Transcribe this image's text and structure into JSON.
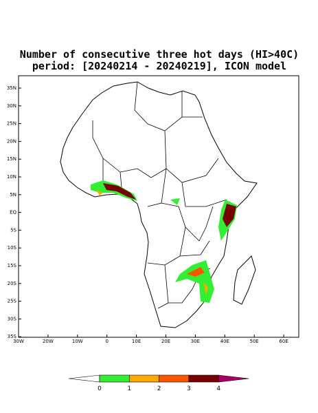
{
  "title": [
    "Number of consecutive three hot days (HI>40C)",
    "period: [20240214 - 20240219], ICON model"
  ],
  "map": {
    "lat_labels": [
      "35N",
      "30N",
      "25N",
      "20N",
      "15N",
      "10N",
      "5N",
      "EQ",
      "5S",
      "10S",
      "15S",
      "20S",
      "25S",
      "30S",
      "35S"
    ],
    "lon_labels": [
      "30W",
      "20W",
      "10W",
      "0",
      "10E",
      "20E",
      "30E",
      "40E",
      "50E",
      "60E"
    ]
  },
  "colorbar": {
    "labels": [
      "0",
      "1",
      "2",
      "3",
      "4"
    ],
    "colors": [
      "#ffffff",
      "#33ee33",
      "#ffaa00",
      "#ff5500",
      "#770000",
      "#aa0066"
    ]
  }
}
